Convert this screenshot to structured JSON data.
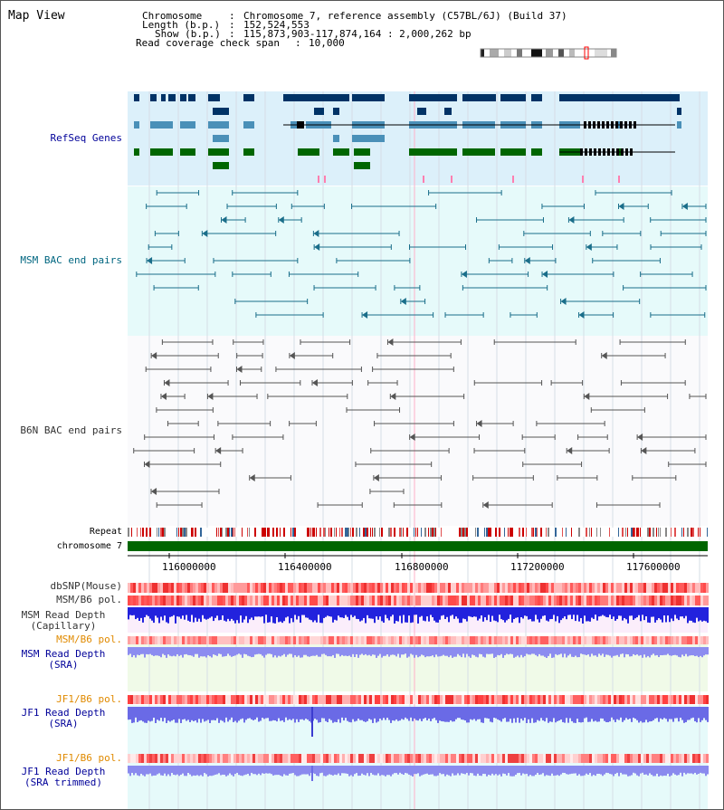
{
  "title": "Map View",
  "header": {
    "chromosome_key": "Chromosome",
    "chromosome_value": "Chromosome 7, reference assembly (C57BL/6J) (Build 37)",
    "length_key": "Length (b.p.)",
    "length_value": "152,524,553",
    "show_key": "Show (b.p.)",
    "show_value": "115,873,903-117,874,164 : 2,000,262 bp",
    "coverage_key": "Read coverage check span",
    "coverage_value": "10,000"
  },
  "tracks": {
    "refseq": "RefSeq Genes",
    "msm_bac": "MSM BAC end pairs",
    "b6n_bac": "B6N BAC end pairs",
    "repeat": "Repeat",
    "chromosome": "chromosome 7",
    "dbsnp": "dbSNP(Mouse)",
    "msm_b6_pol": "MSM/B6 pol.",
    "msm_read_depth_cap_1": "MSM Read Depth",
    "msm_read_depth_cap_2": "(Capillary)",
    "msm_b6_pol_sra": "MSM/B6 pol.",
    "msm_read_depth_sra_1": "MSM Read Depth",
    "msm_read_depth_sra_2": "(SRA)",
    "jf1_b6_pol_1": "JF1/B6 pol.",
    "jf1_read_depth_sra_1": "JF1 Read Depth",
    "jf1_read_depth_sra_2": "(SRA)",
    "jf1_b6_pol_2": "JF1/B6 pol.",
    "jf1_read_depth_trim_1": "JF1 Read Depth",
    "jf1_read_depth_trim_2": "(SRA trimmed)"
  },
  "axis": {
    "ticks": [
      "116000000",
      "116400000",
      "116800000",
      "117200000",
      "117600000"
    ]
  },
  "colors": {
    "refseq_bg": "#dcf0fa",
    "msm_bg": "#e6fafa",
    "b6n_bg": "#fafafc",
    "sra_bg": "#f0fae8",
    "jf1_bg": "#e6fafa",
    "cap_bg": "#fbeefb",
    "dark_blue": "#003366",
    "mid_blue": "#4a90b8",
    "green": "#006600",
    "teal": "#1a6e8a",
    "gray": "#555555",
    "orange_label": "#e08a00",
    "navy_label": "#000099",
    "teal_label": "#006680",
    "gray_label": "#333333"
  }
}
